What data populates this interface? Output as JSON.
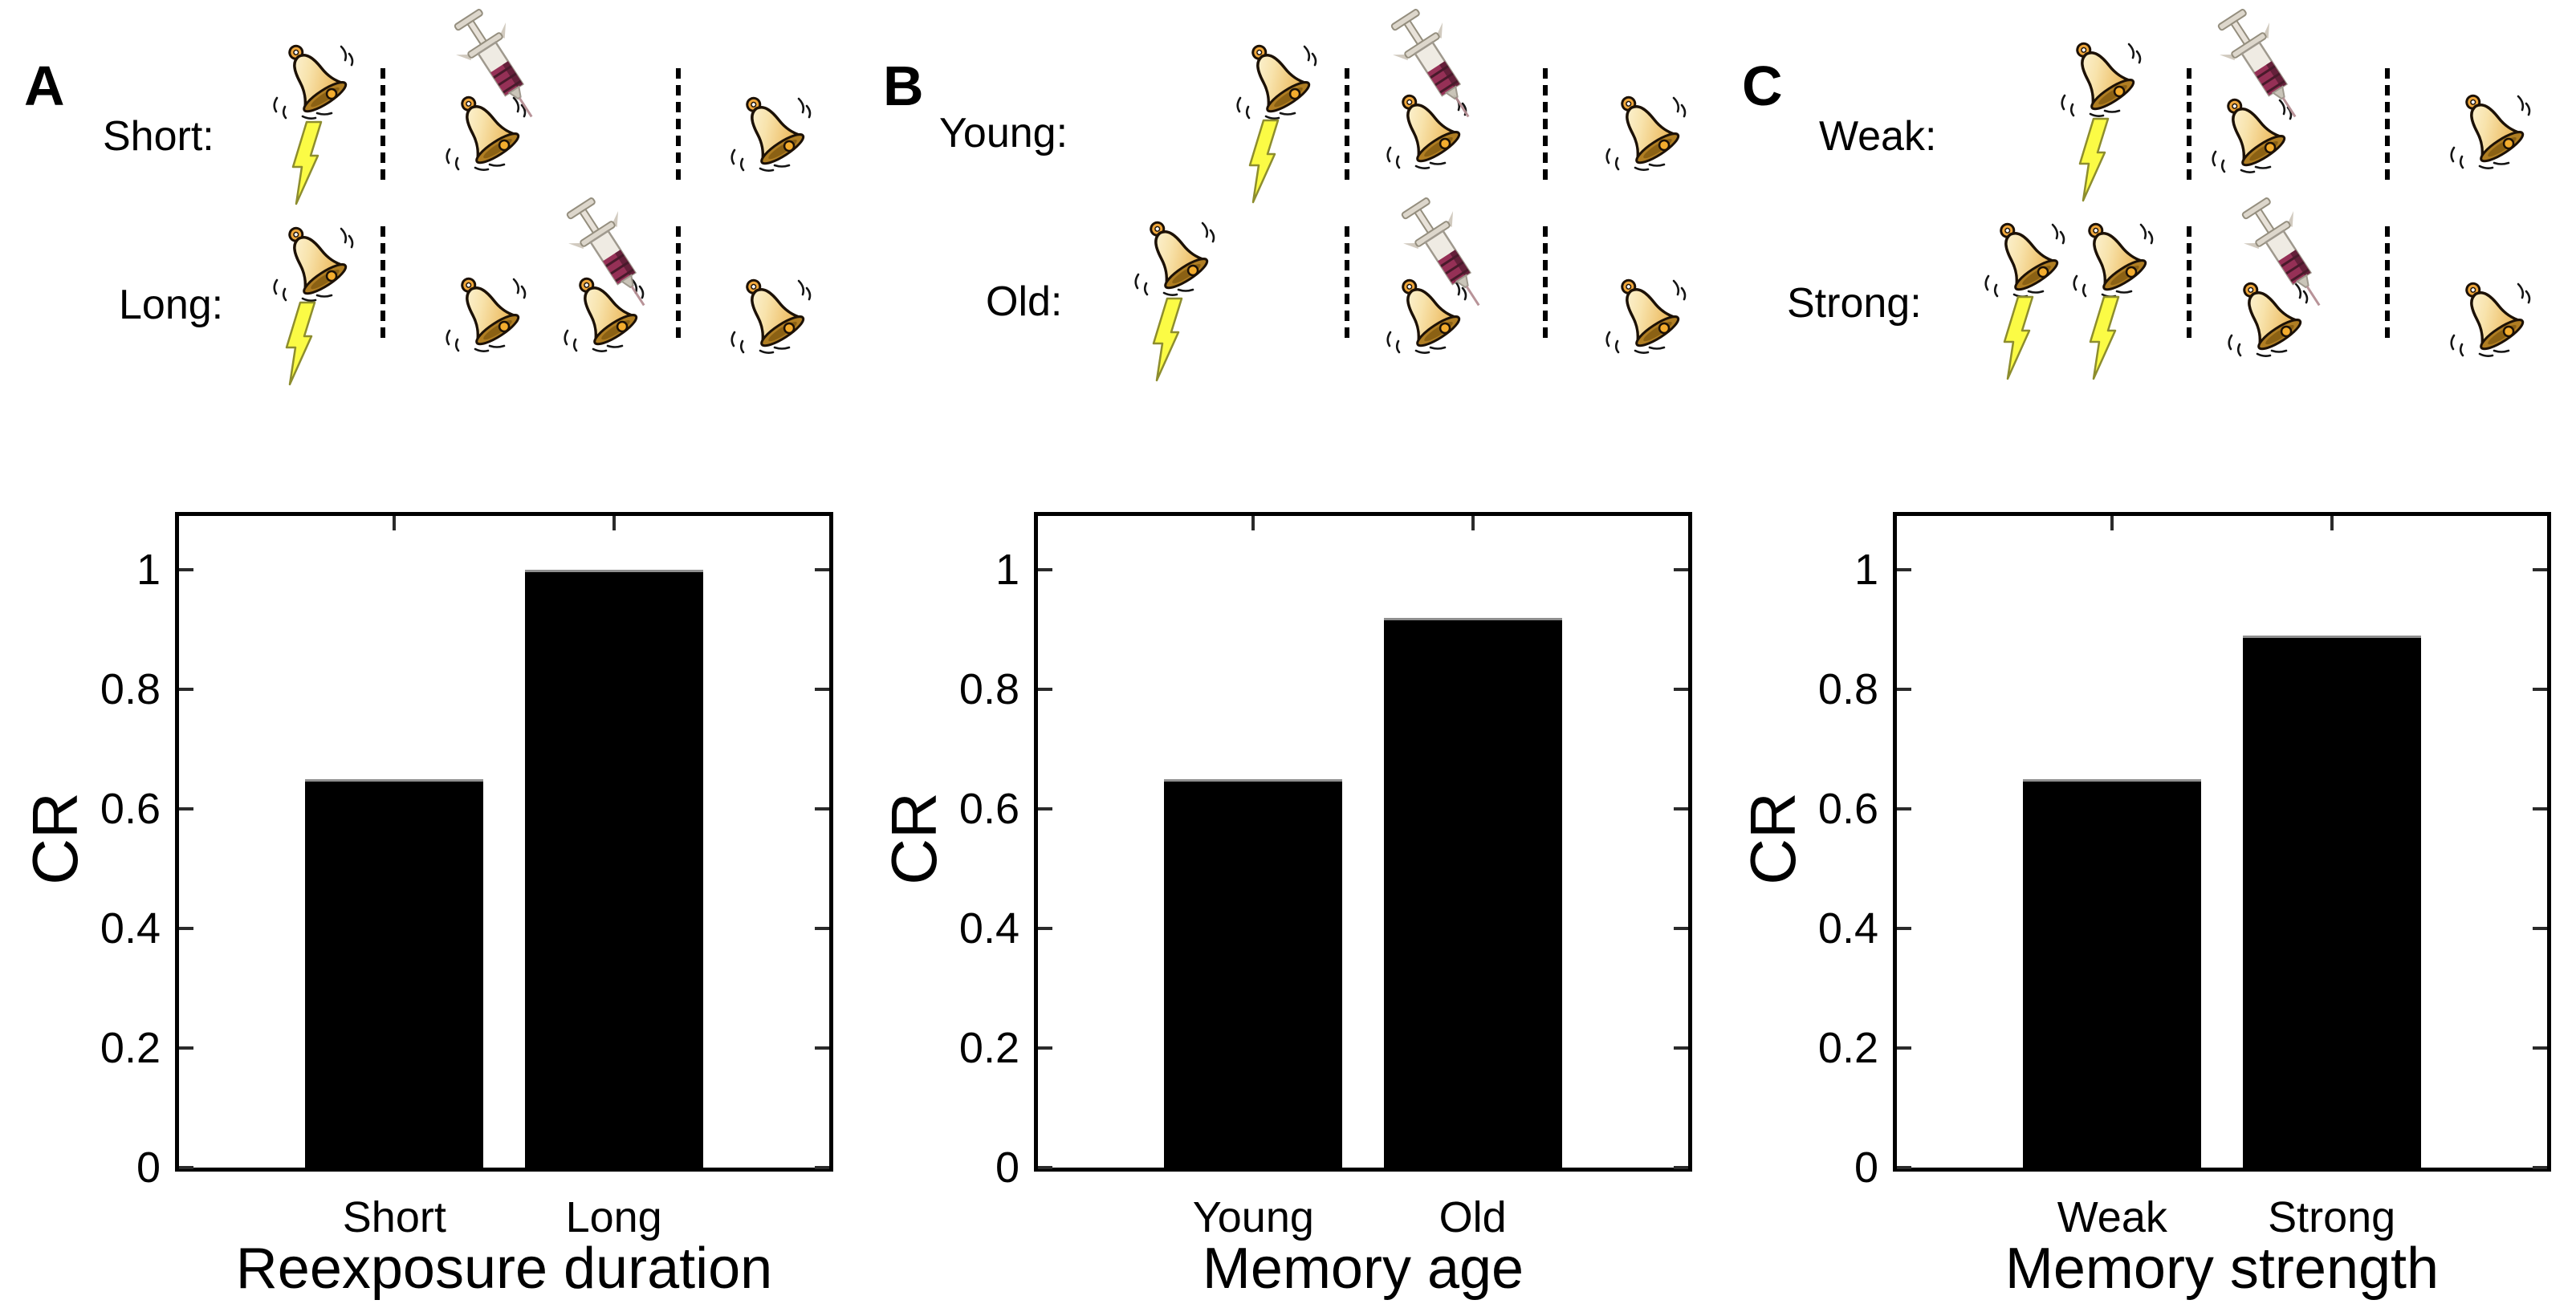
{
  "icons": {
    "bell": "bell-icon",
    "shock": "lightning-bolt-icon",
    "injection": "syringe-icon",
    "separator": "dashed-timeline-separator"
  },
  "panels": [
    {
      "letter": "A",
      "rows": [
        {
          "label": "Short:",
          "train": {
            "bells": 1,
            "shocks": 1
          },
          "reexposure": {
            "syringe": true,
            "bells": 1
          },
          "test": {
            "bells": 1
          }
        },
        {
          "label": "Long:",
          "train": {
            "bells": 1,
            "shocks": 1
          },
          "reexposure": {
            "syringe": true,
            "bells": 2
          },
          "test": {
            "bells": 1
          }
        }
      ]
    },
    {
      "letter": "B",
      "rows": [
        {
          "label": "Young:",
          "train": {
            "bells": 1,
            "shocks": 1
          },
          "reexposure": {
            "syringe": true,
            "bells": 1
          },
          "test": {
            "bells": 1
          }
        },
        {
          "label": "Old:",
          "train": {
            "bells": 1,
            "shocks": 1
          },
          "reexposure": {
            "syringe": true,
            "bells": 1
          },
          "test": {
            "bells": 1
          }
        }
      ]
    },
    {
      "letter": "C",
      "rows": [
        {
          "label": "Weak:",
          "train": {
            "bells": 1,
            "shocks": 1
          },
          "reexposure": {
            "syringe": true,
            "bells": 1
          },
          "test": {
            "bells": 1
          }
        },
        {
          "label": "Strong:",
          "train": {
            "bells": 2,
            "shocks": 2
          },
          "reexposure": {
            "syringe": true,
            "bells": 1
          },
          "test": {
            "bells": 1
          }
        }
      ]
    }
  ],
  "chart_data": [
    {
      "type": "bar",
      "categories": [
        "Short",
        "Long"
      ],
      "values": [
        0.65,
        1.0
      ],
      "title": "",
      "xlabel": "Reexposure duration",
      "ylabel": "CR",
      "ylim": [
        0,
        1.1
      ],
      "yticks": [
        0,
        0.2,
        0.4,
        0.6,
        0.8,
        1
      ],
      "ytick_labels": [
        "0",
        "0.2",
        "0.4",
        "0.6",
        "0.8",
        "1"
      ],
      "bar_color": "#000000",
      "grid": false
    },
    {
      "type": "bar",
      "categories": [
        "Young",
        "Old"
      ],
      "values": [
        0.65,
        0.92
      ],
      "title": "",
      "xlabel": "Memory age",
      "ylabel": "CR",
      "ylim": [
        0,
        1.1
      ],
      "yticks": [
        0,
        0.2,
        0.4,
        0.6,
        0.8,
        1
      ],
      "ytick_labels": [
        "0",
        "0.2",
        "0.4",
        "0.6",
        "0.8",
        "1"
      ],
      "bar_color": "#000000",
      "grid": false
    },
    {
      "type": "bar",
      "categories": [
        "Weak",
        "Strong"
      ],
      "values": [
        0.65,
        0.89
      ],
      "title": "",
      "xlabel": "Memory strength",
      "ylabel": "CR",
      "ylim": [
        0,
        1.1
      ],
      "yticks": [
        0,
        0.2,
        0.4,
        0.6,
        0.8,
        1
      ],
      "ytick_labels": [
        "0",
        "0.2",
        "0.4",
        "0.6",
        "0.8",
        "1"
      ],
      "bar_color": "#000000",
      "grid": false
    }
  ]
}
